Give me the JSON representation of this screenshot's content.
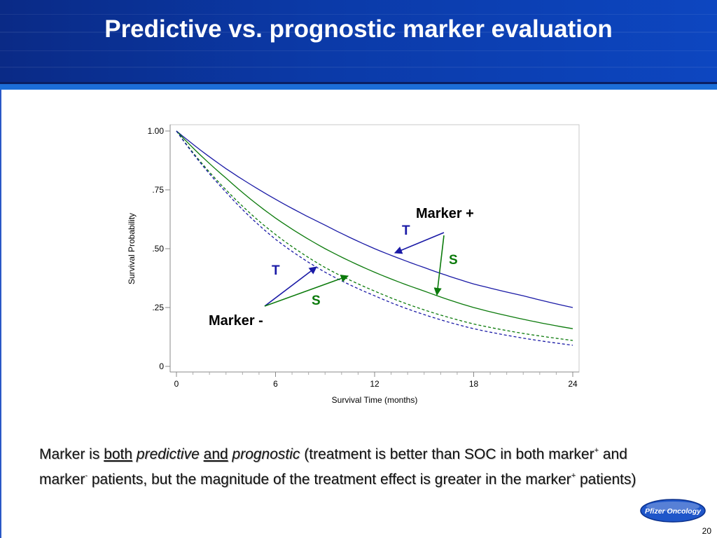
{
  "slide": {
    "title": "Predictive vs. prognostic marker evaluation",
    "page_number": "20",
    "logo_text": "Pfizer Oncology",
    "colors": {
      "header": "#0b3aa8",
      "treatment": "#1a1aa6",
      "soc": "#0b7a0b"
    }
  },
  "annotations": {
    "marker_pos": "Marker +",
    "marker_neg": "Marker -",
    "t_pos": "T",
    "s_pos": "S",
    "t_neg": "T",
    "s_neg": "S"
  },
  "caption": {
    "p1": "Marker is ",
    "both": "both",
    "sp1": " ",
    "predictive": "predictive",
    "sp2": " ",
    "and": "and",
    "sp3": " ",
    "prognostic": "prognostic",
    "p2": " (treatment is better than SOC in both marker",
    "sup1": "+",
    "p3": " and marker",
    "sup2": "-",
    "p4": " patients, but the magnitude of the treatment effect is greater in the marker",
    "sup3": "+",
    "p5": " patients)"
  },
  "chart_data": {
    "type": "line",
    "xlabel": "Survival  Time  (months)",
    "ylabel": "Survival  Probability",
    "xlim": [
      0,
      24
    ],
    "ylim": [
      0,
      1
    ],
    "x_ticks": [
      0,
      6,
      12,
      18,
      24
    ],
    "x_tick_labels": [
      "0",
      "6",
      "12",
      "18",
      "24"
    ],
    "y_ticks": [
      0,
      0.25,
      0.5,
      0.75,
      1.0
    ],
    "y_tick_labels": [
      "0",
      ".25",
      ".50",
      ".75",
      "1.00"
    ],
    "x": [
      0,
      3,
      6,
      9,
      12,
      15,
      18,
      21,
      24
    ],
    "series": [
      {
        "values": [
          1.0,
          0.84,
          0.71,
          0.6,
          0.5,
          0.42,
          0.35,
          0.3,
          0.25
        ],
        "color": "#1a1aa6",
        "dash": false
      },
      {
        "values": [
          1.0,
          0.8,
          0.63,
          0.5,
          0.4,
          0.32,
          0.25,
          0.2,
          0.16
        ],
        "color": "#0b7a0b",
        "dash": false
      },
      {
        "values": [
          1.0,
          0.75,
          0.56,
          0.42,
          0.32,
          0.24,
          0.18,
          0.14,
          0.11
        ],
        "color": "#0b7a0b",
        "dash": true
      },
      {
        "values": [
          1.0,
          0.74,
          0.54,
          0.4,
          0.3,
          0.22,
          0.16,
          0.12,
          0.09
        ],
        "color": "#1a1aa6",
        "dash": true
      }
    ]
  }
}
